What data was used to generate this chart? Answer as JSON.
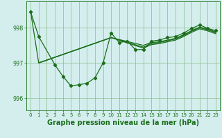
{
  "xlabel": "Graphe pression niveau de la mer (hPa)",
  "bg_color": "#d4eeee",
  "grid_color": "#88bb88",
  "line_color": "#1a6e1a",
  "ylim": [
    995.65,
    998.75
  ],
  "xlim": [
    -0.5,
    23.5
  ],
  "yticks": [
    996,
    997,
    998
  ],
  "xticks": [
    0,
    1,
    2,
    3,
    4,
    5,
    6,
    7,
    8,
    9,
    10,
    11,
    12,
    13,
    14,
    15,
    16,
    17,
    18,
    19,
    20,
    21,
    22,
    23
  ],
  "line1_x": [
    0,
    1,
    3,
    4,
    5,
    6,
    7,
    8,
    9,
    10,
    11,
    12,
    13,
    14,
    15,
    16,
    17,
    18,
    19,
    20,
    21,
    22,
    23
  ],
  "line1_y": [
    998.45,
    997.75,
    996.95,
    996.62,
    996.35,
    996.38,
    996.42,
    996.58,
    997.0,
    997.85,
    997.58,
    997.62,
    997.38,
    997.38,
    997.62,
    997.65,
    997.72,
    997.75,
    997.85,
    997.98,
    998.08,
    997.98,
    997.92
  ],
  "line2_x": [
    0,
    1,
    10,
    14,
    15,
    16,
    17,
    18,
    19,
    20,
    21,
    22,
    23
  ],
  "line2_y": [
    998.45,
    997.0,
    997.72,
    997.5,
    997.58,
    997.6,
    997.65,
    997.7,
    997.8,
    997.92,
    998.02,
    997.96,
    997.88
  ],
  "line3_x": [
    1,
    10,
    14,
    15,
    16,
    17,
    18,
    19,
    20,
    21,
    22,
    23
  ],
  "line3_y": [
    997.0,
    997.72,
    997.45,
    997.55,
    997.58,
    997.63,
    997.68,
    997.78,
    997.9,
    998.0,
    997.94,
    997.86
  ],
  "line4_x": [
    1,
    10,
    14,
    15,
    16,
    17,
    18,
    19,
    20,
    21,
    22,
    23
  ],
  "line4_y": [
    997.0,
    997.72,
    997.42,
    997.52,
    997.55,
    997.6,
    997.65,
    997.75,
    997.87,
    997.97,
    997.91,
    997.83
  ],
  "tick_fontsize": 5.0,
  "xlabel_fontsize": 7.0
}
